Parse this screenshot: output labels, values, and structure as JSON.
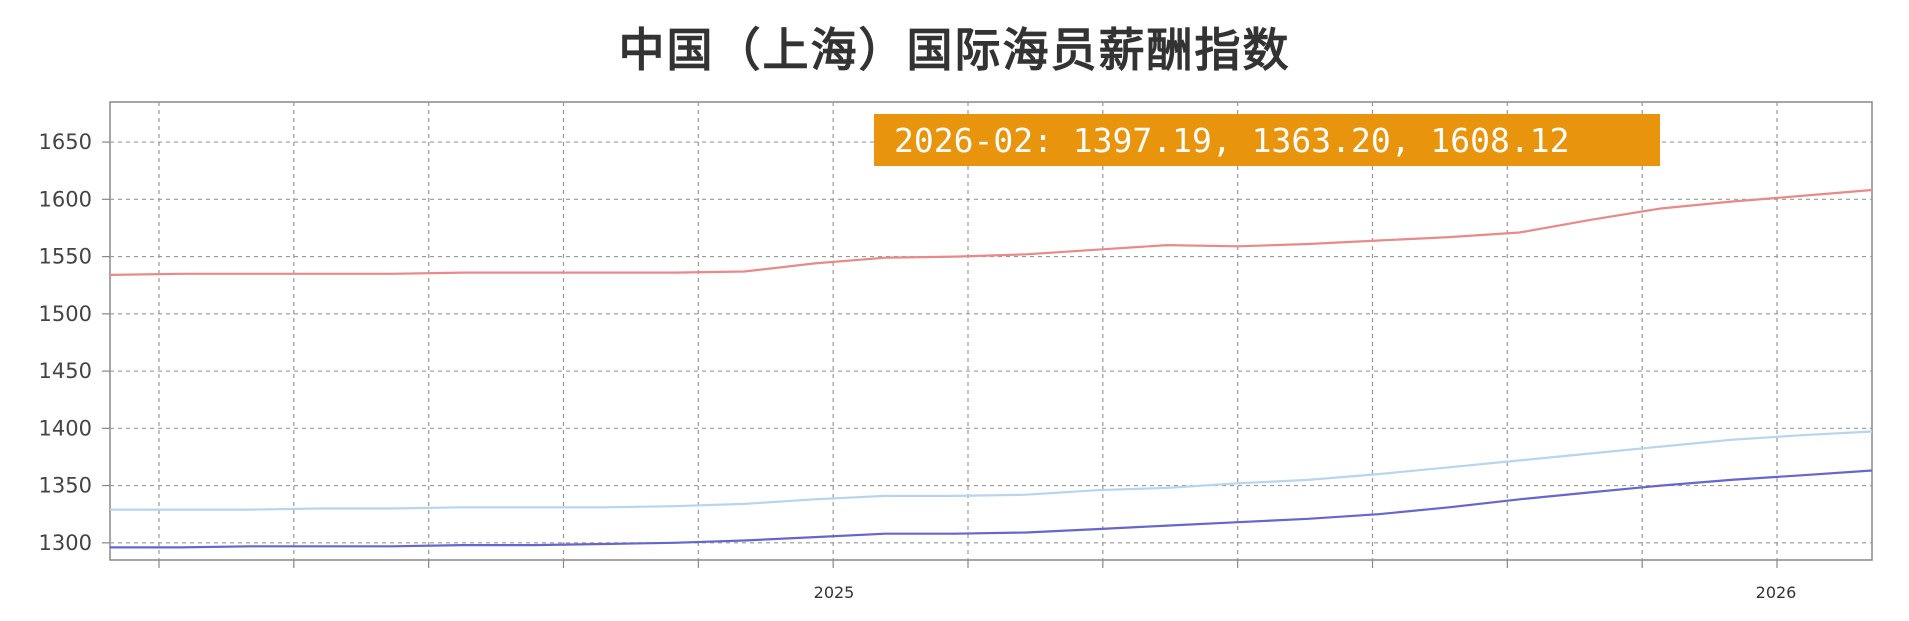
{
  "title": "中国（上海）国际海员薪酬指数",
  "chart_data": {
    "type": "line",
    "title": "中国（上海）国际海员薪酬指数",
    "xlabel": "",
    "ylabel": "",
    "ylim": [
      1285,
      1685
    ],
    "yticks": [
      1300,
      1350,
      1400,
      1450,
      1500,
      1550,
      1600,
      1650
    ],
    "x_tick_labels": [
      "2025",
      "2026"
    ],
    "x": [
      "2024-01",
      "2024-02",
      "2024-03",
      "2024-04",
      "2024-05",
      "2024-06",
      "2024-07",
      "2024-08",
      "2024-09",
      "2024-10",
      "2024-11",
      "2024-12",
      "2025-01",
      "2025-02",
      "2025-03",
      "2025-04",
      "2025-05",
      "2025-06",
      "2025-07",
      "2025-08",
      "2025-09",
      "2025-10",
      "2025-11",
      "2025-12",
      "2026-01",
      "2026-02"
    ],
    "grid": true,
    "legend": "none",
    "series": [
      {
        "color": "#e88a8a",
        "values": [
          1534,
          1535,
          1535,
          1535,
          1535,
          1536,
          1536,
          1536,
          1536,
          1537,
          1544,
          1549,
          1550,
          1552,
          1556,
          1560,
          1559,
          1561,
          1564,
          1567,
          1571,
          1582,
          1592,
          1598,
          1603,
          1608.12
        ]
      },
      {
        "color": "#b8d4ef",
        "values": [
          1329,
          1329,
          1329,
          1330,
          1330,
          1331,
          1331,
          1331,
          1332,
          1334,
          1338,
          1341,
          1341,
          1342,
          1346,
          1348,
          1352,
          1355,
          1360,
          1366,
          1372,
          1378,
          1384,
          1390,
          1394,
          1397.19
        ]
      },
      {
        "color": "#6666cc",
        "values": [
          1296,
          1296,
          1297,
          1297,
          1297,
          1298,
          1298,
          1299,
          1300,
          1302,
          1305,
          1308,
          1308,
          1309,
          1312,
          1315,
          1318,
          1321,
          1325,
          1331,
          1338,
          1344,
          1350,
          1355,
          1359,
          1363.2
        ]
      }
    ],
    "tooltip": {
      "text": "2026-02: 1397.19, 1363.20, 1608.12",
      "background": "#e8940c"
    }
  }
}
